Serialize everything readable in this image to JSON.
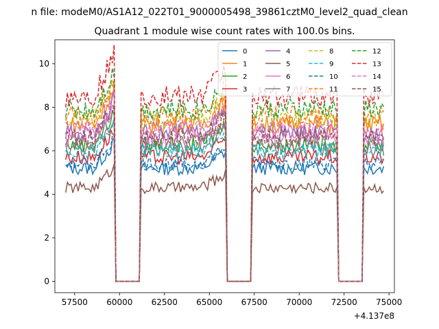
{
  "chart_data": {
    "type": "line",
    "suptitle": "n file: modeM0/AS1A12_022T01_9000005498_39861cztM0_level2_quad_clean",
    "title": "Quadrant 1 module wise count rates with 100.0s bins.",
    "xlabel": "",
    "ylabel": "",
    "x_offset_label": "+4.137e8",
    "xlim": [
      56400,
      75300
    ],
    "ylim": [
      -0.52,
      11.1
    ],
    "x_ticks": [
      57500,
      60000,
      62500,
      65000,
      67500,
      70000,
      72500,
      75000
    ],
    "x_tick_labels": [
      "57500",
      "60000",
      "62500",
      "65000",
      "67500",
      "70000",
      "72500",
      "75000"
    ],
    "y_ticks": [
      0,
      2,
      4,
      6,
      8,
      10
    ],
    "y_tick_labels": [
      "0",
      "2",
      "4",
      "6",
      "8",
      "10"
    ],
    "gaps": [
      [
        59750,
        61100
      ],
      [
        66000,
        67300
      ],
      [
        72150,
        73500
      ]
    ],
    "segments": [
      [
        57000,
        59700
      ],
      [
        61150,
        65950
      ],
      [
        67350,
        72100
      ],
      [
        73550,
        74750
      ]
    ],
    "legend": {
      "position": "top-right",
      "columns": 4
    },
    "series": [
      {
        "name": "0",
        "color": "#1f77b4",
        "style": "solid",
        "level": 5.2
      },
      {
        "name": "1",
        "color": "#ff7f0e",
        "style": "solid",
        "level": 7.2
      },
      {
        "name": "2",
        "color": "#2ca02c",
        "style": "solid",
        "level": 6.3
      },
      {
        "name": "3",
        "color": "#d62728",
        "style": "solid",
        "level": 5.7
      },
      {
        "name": "4",
        "color": "#9467bd",
        "style": "solid",
        "level": 6.8
      },
      {
        "name": "5",
        "color": "#8c564b",
        "style": "solid",
        "level": 4.3
      },
      {
        "name": "6",
        "color": "#e377c2",
        "style": "solid",
        "level": 6.5
      },
      {
        "name": "7",
        "color": "#7f7f7f",
        "style": "solid",
        "level": 6.1
      },
      {
        "name": "8",
        "color": "#bcbd22",
        "style": "dashed",
        "level": 7.4
      },
      {
        "name": "9",
        "color": "#17becf",
        "style": "dashed",
        "level": 6.0
      },
      {
        "name": "10",
        "color": "#1f77b4",
        "style": "dashed",
        "level": 5.4
      },
      {
        "name": "11",
        "color": "#ff7f0e",
        "style": "dashed",
        "level": 7.6
      },
      {
        "name": "12",
        "color": "#2ca02c",
        "style": "dashed",
        "level": 7.9
      },
      {
        "name": "13",
        "color": "#d62728",
        "style": "dashed",
        "level": 8.5
      },
      {
        "name": "14",
        "color": "#e377c2",
        "style": "dashed",
        "level": 7.0
      },
      {
        "name": "15",
        "color": "#8c564b",
        "style": "dashed",
        "level": 6.6
      }
    ]
  }
}
